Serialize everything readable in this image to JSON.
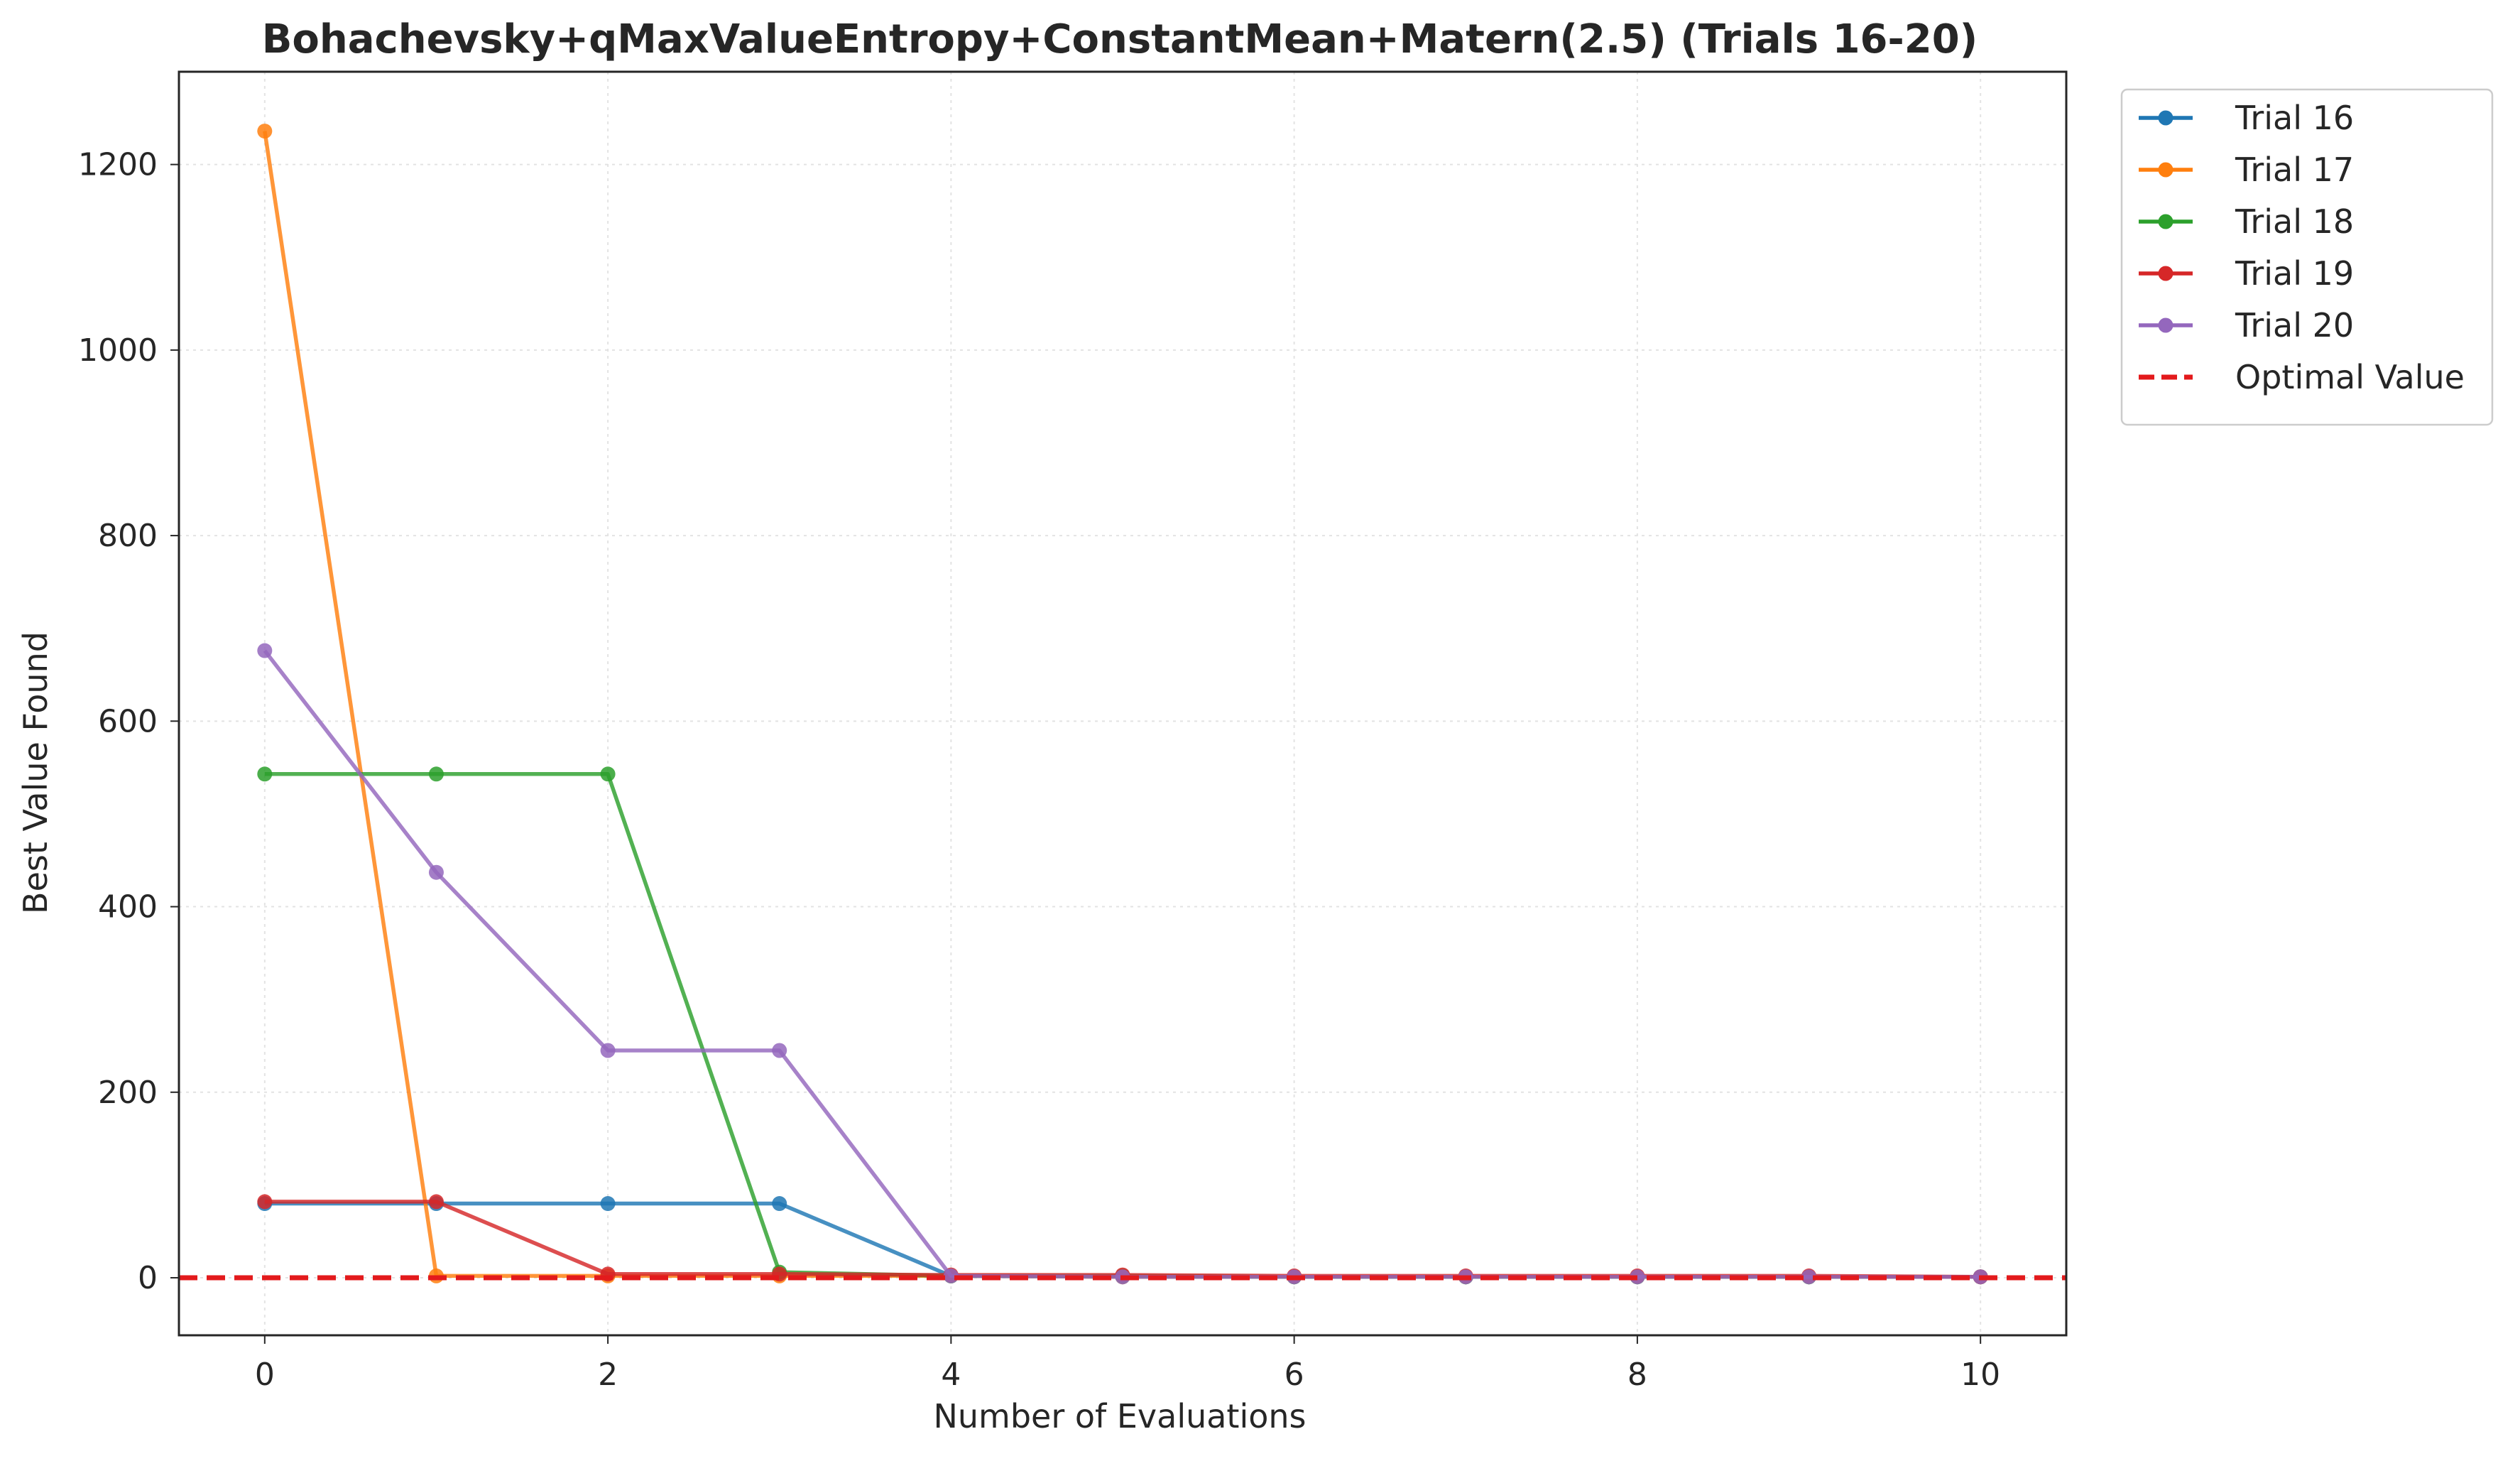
{
  "chart_data": {
    "type": "line",
    "title": "Bohachevsky+qMaxValueEntropy+ConstantMean+Matern(2.5) (Trials 16-20)",
    "xlabel": "Number of Evaluations",
    "ylabel": "Best Value Found",
    "xlim": [
      -0.5,
      10.5
    ],
    "ylim": [
      -62,
      1300
    ],
    "xticks": [
      0,
      2,
      4,
      6,
      8,
      10
    ],
    "yticks": [
      0,
      200,
      400,
      600,
      800,
      1000,
      1200
    ],
    "grid": true,
    "legend_position": "outside-top-right",
    "x": [
      0,
      1,
      2,
      3,
      4,
      5,
      6,
      7,
      8,
      9,
      10
    ],
    "series": [
      {
        "name": "Trial 16",
        "color": "#1f77b4",
        "values": [
          80,
          80,
          80,
          80,
          2,
          1,
          1,
          1,
          1,
          1,
          1
        ]
      },
      {
        "name": "Trial 17",
        "color": "#ff7f0e",
        "values": [
          1236,
          2,
          2,
          2,
          2,
          1,
          1,
          1,
          1,
          1,
          1
        ]
      },
      {
        "name": "Trial 18",
        "color": "#2ca02c",
        "values": [
          543,
          543,
          543,
          6,
          2,
          2,
          1,
          1,
          1,
          1,
          1
        ]
      },
      {
        "name": "Trial 19",
        "color": "#d62728",
        "values": [
          82,
          82,
          4,
          4,
          3,
          3,
          2,
          2,
          2,
          2,
          1
        ]
      },
      {
        "name": "Trial 20",
        "color": "#9467bd",
        "values": [
          676,
          437,
          245,
          245,
          2,
          1,
          1,
          1,
          1,
          1,
          1
        ]
      }
    ],
    "reference_line": {
      "name": "Optimal Value",
      "value": 0,
      "color": "#e31a1c",
      "style": "dashed"
    }
  }
}
